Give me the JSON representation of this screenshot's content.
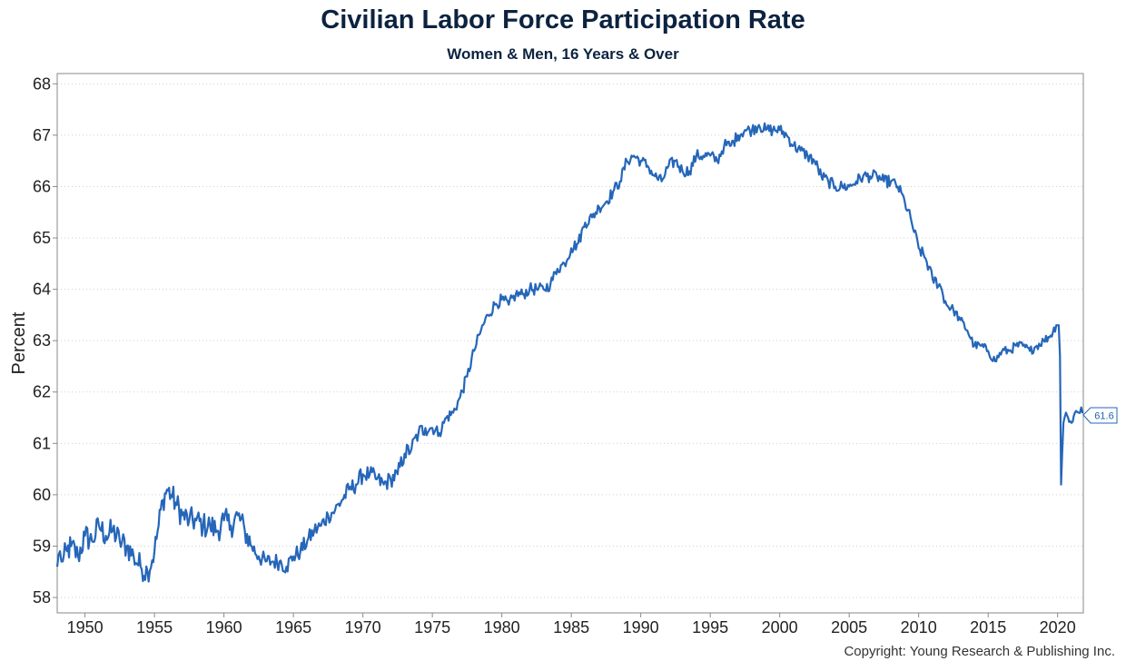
{
  "chart_data": {
    "type": "line",
    "title": "Civilian Labor Force Participation Rate",
    "subtitle": "Women & Men, 16 Years & Over",
    "ylabel": "Percent",
    "xlabel": "",
    "xlim": [
      1948,
      2021.85
    ],
    "ylim": [
      57.7,
      68.2
    ],
    "x_ticks": [
      "1950",
      "1955",
      "1960",
      "1965",
      "1970",
      "1975",
      "1980",
      "1985",
      "1990",
      "1995",
      "2000",
      "2005",
      "2010",
      "2015",
      "2020"
    ],
    "y_ticks": [
      "58",
      "59",
      "60",
      "61",
      "62",
      "63",
      "64",
      "65",
      "66",
      "67",
      "68"
    ],
    "grid": "horizontal-dotted",
    "line_color": "#2566b9",
    "last_value_label": "61.6",
    "series": [
      {
        "x": [
          1948.0,
          1948.2,
          1948.4,
          1948.7,
          1949.0,
          1949.5,
          1950.0,
          1950.5,
          1951.0,
          1951.5,
          1952.0,
          1952.5,
          1953.0,
          1953.5,
          1954.0,
          1954.5,
          1955.0,
          1955.3,
          1955.6,
          1955.9,
          1956.2,
          1956.6,
          1957.0,
          1957.5,
          1958.0,
          1958.5,
          1959.0,
          1959.5,
          1960.0,
          1960.5,
          1961.0,
          1961.5,
          1962.0,
          1962.5,
          1963.0,
          1963.5,
          1964.0,
          1964.5,
          1965.0,
          1965.5,
          1966.0,
          1966.5,
          1967.0,
          1967.5,
          1968.0,
          1968.5,
          1969.0,
          1969.5,
          1970.0,
          1970.5,
          1971.0,
          1971.5,
          1972.0,
          1972.5,
          1973.0,
          1973.5,
          1974.0,
          1974.5,
          1975.0,
          1975.5,
          1976.0,
          1976.5,
          1977.0,
          1977.5,
          1978.0,
          1978.5,
          1979.0,
          1979.5,
          1980.0,
          1980.5,
          1981.0,
          1981.5,
          1982.0,
          1982.5,
          1983.0,
          1983.5,
          1984.0,
          1984.5,
          1985.0,
          1985.5,
          1986.0,
          1986.5,
          1987.0,
          1987.5,
          1988.0,
          1988.5,
          1989.0,
          1989.5,
          1990.0,
          1990.5,
          1991.0,
          1991.5,
          1992.0,
          1992.5,
          1993.0,
          1993.5,
          1994.0,
          1994.5,
          1995.0,
          1995.5,
          1996.0,
          1996.5,
          1997.0,
          1997.5,
          1998.0,
          1998.5,
          1999.0,
          1999.5,
          2000.0,
          2000.5,
          2001.0,
          2001.5,
          2002.0,
          2002.5,
          2003.0,
          2003.5,
          2004.0,
          2004.5,
          2005.0,
          2005.5,
          2006.0,
          2006.5,
          2007.0,
          2007.5,
          2008.0,
          2008.5,
          2009.0,
          2009.5,
          2010.0,
          2010.5,
          2011.0,
          2011.5,
          2012.0,
          2012.5,
          2013.0,
          2013.5,
          2014.0,
          2014.5,
          2015.0,
          2015.5,
          2016.0,
          2016.5,
          2017.0,
          2017.5,
          2018.0,
          2018.5,
          2019.0,
          2019.5,
          2019.9,
          2020.08,
          2020.17,
          2020.25,
          2020.33,
          2020.42,
          2020.5,
          2020.6,
          2020.75,
          2021.0,
          2021.25,
          2021.5,
          2021.7,
          2021.85
        ],
        "values": [
          58.6,
          58.9,
          58.7,
          58.9,
          59.0,
          58.8,
          59.2,
          59.1,
          59.4,
          59.2,
          59.3,
          59.1,
          59.0,
          58.8,
          58.6,
          58.5,
          58.9,
          59.4,
          59.9,
          60.1,
          60.0,
          59.8,
          59.6,
          59.5,
          59.5,
          59.4,
          59.4,
          59.3,
          59.5,
          59.4,
          59.6,
          59.3,
          59.0,
          58.8,
          58.7,
          58.7,
          58.7,
          58.6,
          58.8,
          58.9,
          59.1,
          59.3,
          59.4,
          59.6,
          59.7,
          59.9,
          60.1,
          60.2,
          60.4,
          60.4,
          60.3,
          60.2,
          60.3,
          60.4,
          60.8,
          60.9,
          61.2,
          61.3,
          61.3,
          61.2,
          61.5,
          61.6,
          61.9,
          62.3,
          62.8,
          63.2,
          63.5,
          63.7,
          63.8,
          63.7,
          63.9,
          63.9,
          64.0,
          64.0,
          64.0,
          64.1,
          64.4,
          64.5,
          64.8,
          64.9,
          65.3,
          65.4,
          65.6,
          65.7,
          65.9,
          66.1,
          66.5,
          66.6,
          66.5,
          66.4,
          66.2,
          66.1,
          66.4,
          66.5,
          66.3,
          66.3,
          66.6,
          66.6,
          66.6,
          66.5,
          66.8,
          66.8,
          67.0,
          67.1,
          67.1,
          67.2,
          67.1,
          67.1,
          67.1,
          67.0,
          66.8,
          66.7,
          66.6,
          66.5,
          66.2,
          66.1,
          66.0,
          66.0,
          66.0,
          66.1,
          66.2,
          66.2,
          66.2,
          66.1,
          66.1,
          66.0,
          65.7,
          65.3,
          64.8,
          64.6,
          64.2,
          64.1,
          63.7,
          63.6,
          63.4,
          63.2,
          62.9,
          62.9,
          62.8,
          62.6,
          62.8,
          62.8,
          62.9,
          62.9,
          62.8,
          62.9,
          63.0,
          63.1,
          63.3,
          63.3,
          62.7,
          60.2,
          60.8,
          61.4,
          61.5,
          61.6,
          61.5,
          61.4,
          61.6,
          61.6,
          61.7,
          61.6
        ]
      }
    ]
  },
  "copyright": "Copyright: Young Research & Publishing Inc."
}
